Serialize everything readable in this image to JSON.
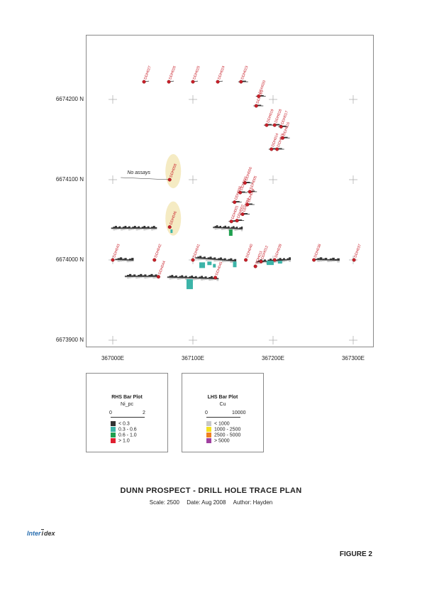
{
  "map": {
    "northings": [
      {
        "label": "6674200 N",
        "value": 6674200
      },
      {
        "label": "6674100 N",
        "value": 6674100
      },
      {
        "label": "6674000 N",
        "value": 6674000
      },
      {
        "label": "6673900 N",
        "value": 6673900
      }
    ],
    "eastings": [
      {
        "label": "367000E",
        "value": 367000
      },
      {
        "label": "367100E",
        "value": 367100
      },
      {
        "label": "367200E",
        "value": 367200
      },
      {
        "label": "367300E",
        "value": 367300
      }
    ],
    "annotation": "No assays",
    "collar_color": "#c8202a",
    "label_color": "#c8202a",
    "highlight_color": "#f3e7b8",
    "holes": [
      {
        "id": "DDH027",
        "e": 367039,
        "n": 6674222
      },
      {
        "id": "DDH026",
        "e": 367070,
        "n": 6674222
      },
      {
        "id": "DDH025",
        "e": 367100,
        "n": 6674222
      },
      {
        "id": "DDH024",
        "e": 367131,
        "n": 6674222
      },
      {
        "id": "DDH023",
        "e": 367160,
        "n": 6674222
      },
      {
        "id": "DDH020",
        "e": 367182,
        "n": 6674204
      },
      {
        "id": "DDH021",
        "e": 367179,
        "n": 6674192
      },
      {
        "id": "DDH019",
        "e": 367192,
        "n": 6674168
      },
      {
        "id": "DDH018",
        "e": 367202,
        "n": 6674168
      },
      {
        "id": "DDH017",
        "e": 367210,
        "n": 6674166
      },
      {
        "id": "DDH016",
        "e": 367212,
        "n": 6674152
      },
      {
        "id": "DDH015",
        "e": 367205,
        "n": 6674138
      },
      {
        "id": "DDH014",
        "e": 367198,
        "n": 6674138
      },
      {
        "id": "DDH058",
        "e": 367071,
        "n": 6674100
      },
      {
        "id": "DDH008",
        "e": 367152,
        "n": 6674072
      },
      {
        "id": "DDH007",
        "e": 367159,
        "n": 6674084
      },
      {
        "id": "DDH006",
        "e": 367165,
        "n": 6674096
      },
      {
        "id": "DDH005",
        "e": 367171,
        "n": 6674085
      },
      {
        "id": "DDH004",
        "e": 367168,
        "n": 6674069
      },
      {
        "id": "DDH003",
        "e": 367162,
        "n": 6674057
      },
      {
        "id": "DDH002",
        "e": 367155,
        "n": 6674049
      },
      {
        "id": "DDH001",
        "e": 367148,
        "n": 6674048
      },
      {
        "id": "DDH046",
        "e": 367071,
        "n": 6674041
      },
      {
        "id": "DDH043",
        "e": 367000,
        "n": 6674000
      },
      {
        "id": "DDH042",
        "e": 367052,
        "n": 6674000
      },
      {
        "id": "DDH041",
        "e": 367100,
        "n": 6674000
      },
      {
        "id": "DDH040",
        "e": 367166,
        "n": 6674000
      },
      {
        "id": "DDH012",
        "e": 367185,
        "n": 6673998
      },
      {
        "id": "DDH011",
        "e": 367178,
        "n": 6673992
      },
      {
        "id": "DDH039",
        "e": 367202,
        "n": 6674000
      },
      {
        "id": "DDH038",
        "e": 367251,
        "n": 6674000
      },
      {
        "id": "DDH037",
        "e": 367301,
        "n": 6674000
      },
      {
        "id": "DDH045",
        "e": 367128,
        "n": 6673978
      },
      {
        "id": "DDH044",
        "e": 367057,
        "n": 6673979
      }
    ]
  },
  "legends": {
    "rhs": {
      "title": "RHS Bar Plot",
      "variable": "Ni_pc",
      "scale_min": "0",
      "scale_max": "2",
      "items": [
        {
          "label": "< 0.3",
          "color": "#333333"
        },
        {
          "label": "0.3 - 0.6",
          "color": "#3cb4a8"
        },
        {
          "label": "0.6 - 1.0",
          "color": "#20a050"
        },
        {
          "label": "> 1.0",
          "color": "#e02030"
        }
      ]
    },
    "lhs": {
      "title": "LHS Bar Plot",
      "variable": "Cu",
      "scale_min": "0",
      "scale_max": "10000",
      "items": [
        {
          "label": "< 1000",
          "color": "#c8c8c8"
        },
        {
          "label": "1000 - 2500",
          "color": "#f4e020"
        },
        {
          "label": "2500 - 5000",
          "color": "#f08020"
        },
        {
          "label": "> 5000",
          "color": "#a040a0"
        }
      ]
    }
  },
  "title": "DUNN PROSPECT - DRILL HOLE TRACE PLAN",
  "subtitle": {
    "scale": "Scale: 2500",
    "date": "Date: Aug 2008",
    "author": "Author: Hayden"
  },
  "logo": {
    "part1": "Inter",
    "part2": "dex"
  },
  "figure_label": "FIGURE 2"
}
